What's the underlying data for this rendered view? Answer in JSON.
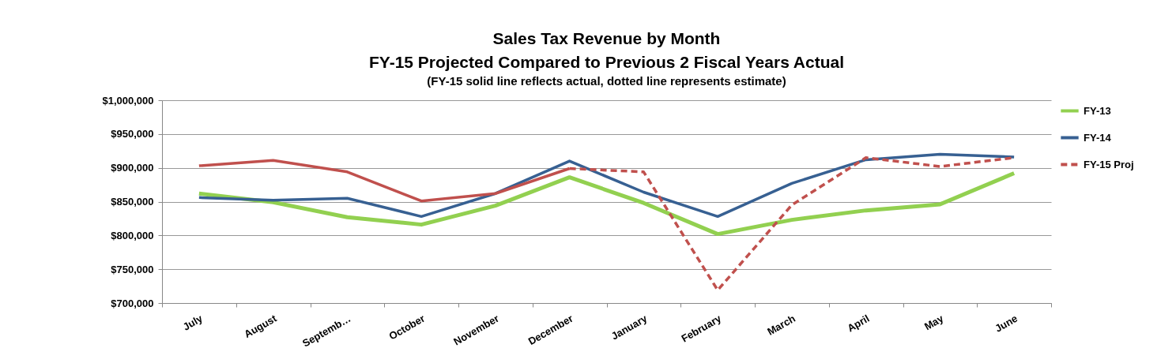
{
  "chart_data": {
    "type": "line",
    "title": "Sales Tax Revenue by Month\nFY-15 Projected Compared to Previous 2 Fiscal Years Actual",
    "subtitle": "(FY-15 solid line reflects actual, dotted line represents estimate)",
    "categories": [
      "July",
      "August",
      "Septemb…",
      "October",
      "November",
      "December",
      "January",
      "February",
      "March",
      "April",
      "May",
      "June"
    ],
    "series": [
      {
        "name": "FY-13",
        "color": "#92d050",
        "values": [
          862000,
          849000,
          827000,
          816000,
          844000,
          886000,
          848000,
          802000,
          823000,
          837000,
          846000,
          892000
        ]
      },
      {
        "name": "FY-14",
        "color": "#376092",
        "values": [
          856000,
          852000,
          855000,
          828000,
          862000,
          910000,
          864000,
          828000,
          877000,
          912000,
          920000,
          916000
        ]
      },
      {
        "name": "FY-15 Proj",
        "color": "#c0504d",
        "line_style": "dashed",
        "values": [
          null,
          null,
          null,
          null,
          null,
          899000,
          894000,
          719000,
          845000,
          915000,
          902000,
          915000
        ]
      },
      {
        "color": "#c0504d",
        "values": [
          903000,
          911000,
          894000,
          851000,
          862000,
          899000,
          null,
          null,
          null,
          null,
          null,
          null
        ]
      }
    ],
    "ylim": [
      700000,
      1000000
    ],
    "yticks": [
      {
        "value": 700000,
        "label": "$700,000"
      },
      {
        "value": 750000,
        "label": "$750,000"
      },
      {
        "value": 800000,
        "label": "$800,000"
      },
      {
        "value": 850000,
        "label": "$850,000"
      },
      {
        "value": 900000,
        "label": "$900,000"
      },
      {
        "value": 950000,
        "label": "$950,000"
      },
      {
        "value": 1000000,
        "label": "$1,000,000"
      }
    ],
    "grid": "y",
    "legend": "top right",
    "line_style": "solid"
  }
}
